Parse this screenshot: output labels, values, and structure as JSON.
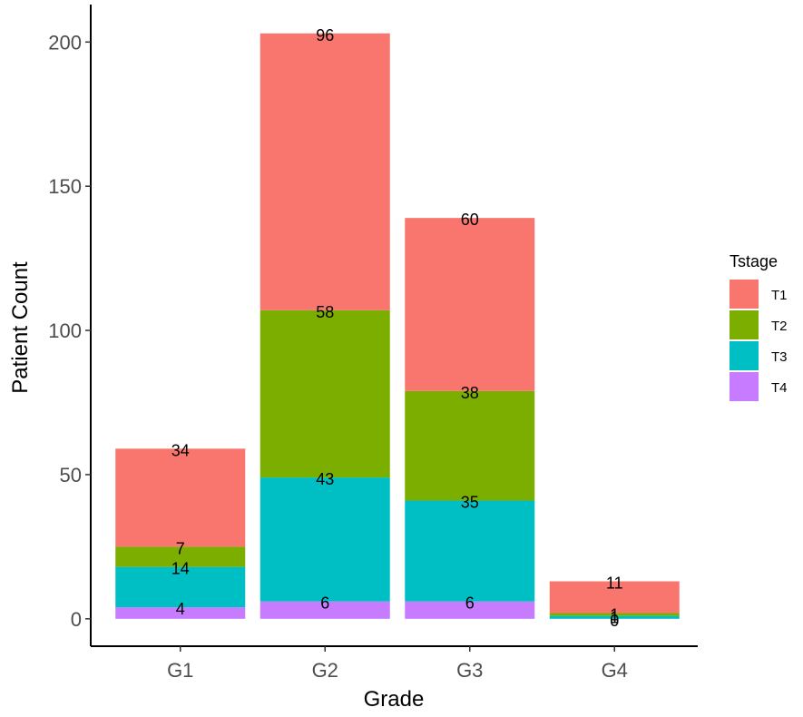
{
  "chart_data": {
    "type": "bar",
    "stacked": true,
    "xlabel": "Grade",
    "ylabel": "Patient Count",
    "categories": [
      "G1",
      "G2",
      "G3",
      "G4"
    ],
    "ylim": [
      -9.5,
      213
    ],
    "yticks": [
      0,
      50,
      100,
      150,
      200
    ],
    "grid": false,
    "legend_title": "Tstage",
    "legend_position": "right",
    "stack_order_bottom_to_top": [
      "T4",
      "T3",
      "T2",
      "T1"
    ],
    "series": [
      {
        "name": "T1",
        "color": "#F8766D",
        "values": [
          34,
          96,
          60,
          11
        ]
      },
      {
        "name": "T2",
        "color": "#7CAE00",
        "values": [
          7,
          58,
          38,
          1
        ]
      },
      {
        "name": "T3",
        "color": "#00BFC4",
        "values": [
          14,
          43,
          35,
          1
        ]
      },
      {
        "name": "T4",
        "color": "#C77CFF",
        "values": [
          4,
          6,
          6,
          0
        ]
      }
    ]
  }
}
